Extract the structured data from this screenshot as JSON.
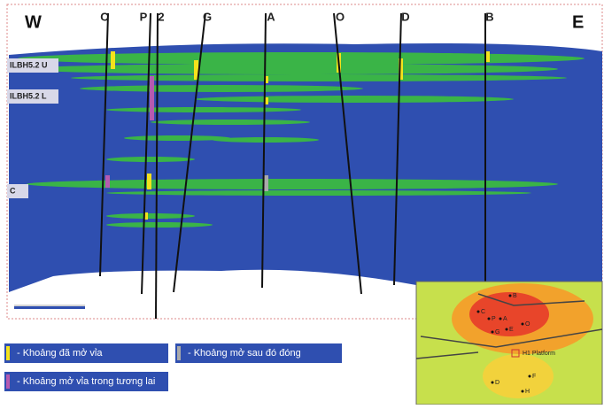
{
  "section": {
    "west": "W",
    "east": "E",
    "wells": [
      "C",
      "P",
      "2",
      "G",
      "A",
      "O",
      "D",
      "B"
    ],
    "layers": [
      "ILBH5.2 U",
      "ILBH5.2 L",
      "C"
    ]
  },
  "legend": [
    "- Khoảng đã mở vỉa",
    "- Khoảng mở sau đó đóng",
    "- Khoảng mở vỉa trong tương lai"
  ],
  "map": {
    "platform": "H1 Platform",
    "wells": [
      "B",
      "C",
      "P",
      "A",
      "G",
      "O",
      "E",
      "D",
      "F",
      "H"
    ]
  }
}
